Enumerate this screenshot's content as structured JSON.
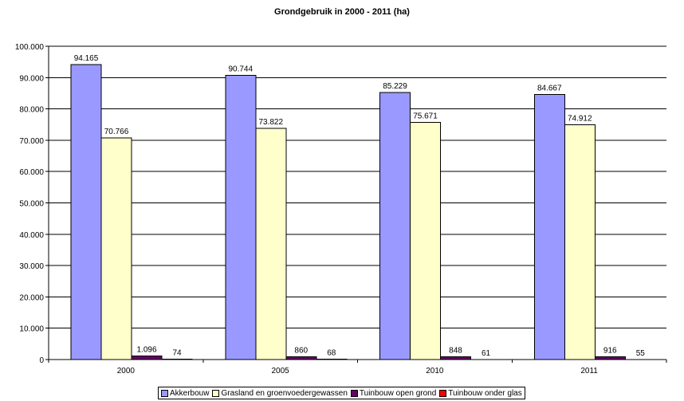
{
  "chart_data": {
    "type": "bar",
    "title": "Grondgebruik in 2000 - 2011 (ha)",
    "xlabel": "",
    "ylabel": "",
    "categories": [
      "2000",
      "2005",
      "2010",
      "2011"
    ],
    "ylim": [
      0,
      100000
    ],
    "yticks": [
      0,
      10000,
      20000,
      30000,
      40000,
      50000,
      60000,
      70000,
      80000,
      90000,
      100000
    ],
    "ytick_labels": [
      "0",
      "10.000",
      "20.000",
      "30.000",
      "40.000",
      "50.000",
      "60.000",
      "70.000",
      "80.000",
      "90.000",
      "100.000"
    ],
    "grid": "horizontal",
    "legend_position": "bottom",
    "series": [
      {
        "name": "Akkerbouw",
        "color": "#9999FF",
        "values": [
          94165,
          90744,
          85229,
          84667
        ],
        "labels": [
          "94.165",
          "90.744",
          "85.229",
          "84.667"
        ]
      },
      {
        "name": "Grasland en groenvoedergewassen",
        "color": "#FFFFCC",
        "values": [
          70766,
          73822,
          75671,
          74912
        ],
        "labels": [
          "70.766",
          "73.822",
          "75.671",
          "74.912"
        ]
      },
      {
        "name": "Tuinbouw open grond",
        "color": "#660066",
        "values": [
          1096,
          860,
          848,
          916
        ],
        "labels": [
          "1.096",
          "860",
          "848",
          "916"
        ]
      },
      {
        "name": "Tuinbouw onder glas",
        "color": "#FF0000",
        "values": [
          74,
          68,
          61,
          55
        ],
        "labels": [
          "74",
          "68",
          "61",
          "55"
        ]
      }
    ]
  }
}
